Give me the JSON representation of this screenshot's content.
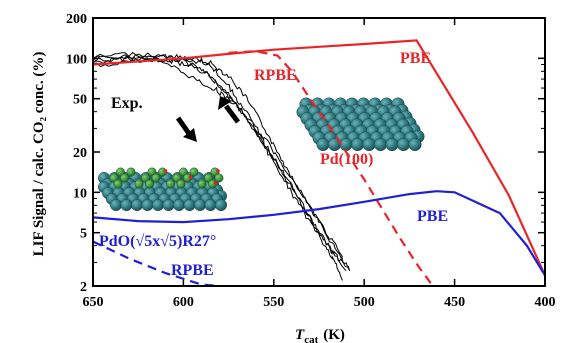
{
  "chart_data": {
    "type": "line",
    "xlabel": "T",
    "xlabel_sub": "cat",
    "xlabel_unit": "(K)",
    "ylabel": "LIF Signal / calc. CO₂ conc. (%)",
    "xlim": [
      650,
      400
    ],
    "ylim": [
      2,
      200
    ],
    "y_scale": "log",
    "x_ticks": [
      "650",
      "600",
      "550",
      "500",
      "450",
      "400"
    ],
    "y_ticks": [
      "200",
      "100",
      "50",
      "20",
      "10",
      "5",
      "2"
    ],
    "grid": false,
    "colors": {
      "red": "#e8262a",
      "blue": "#1f1fd6",
      "black": "#000000"
    },
    "series": [
      {
        "name": "PBE",
        "color": "red",
        "dash": false,
        "x": [
          650,
          600,
          575,
          550,
          525,
          500,
          471,
          440,
          420,
          400
        ],
        "y": [
          90,
          100,
          108,
          116,
          122,
          128,
          136,
          28,
          9.5,
          2.4
        ]
      },
      {
        "name": "RPBE",
        "color": "red",
        "dash": true,
        "x": [
          575,
          560,
          548,
          540,
          530,
          520,
          510,
          500,
          490,
          480,
          470,
          462
        ],
        "y": [
          110,
          113,
          105,
          80,
          50,
          32,
          20,
          12.5,
          7.5,
          4.5,
          2.8,
          2
        ]
      },
      {
        "name": "PBE",
        "color": "blue",
        "dash": false,
        "x": [
          650,
          625,
          600,
          575,
          550,
          525,
          500,
          475,
          460,
          450,
          425,
          410,
          400
        ],
        "y": [
          6.5,
          6.1,
          6.0,
          6.3,
          6.8,
          7.5,
          8.5,
          9.7,
          10.2,
          10.0,
          7.0,
          4.0,
          2.4
        ]
      },
      {
        "name": "RPBE",
        "color": "blue",
        "dash": true,
        "x": [
          650,
          630,
          610,
          590,
          580
        ],
        "y": [
          4.3,
          3.2,
          2.5,
          2.05,
          2
        ]
      }
    ],
    "experiment_traces": [
      {
        "x": [
          650,
          630,
          610,
          595,
          585,
          575,
          565,
          555,
          545,
          535,
          525,
          515,
          508
        ],
        "y": [
          93,
          100,
          98,
          95,
          92,
          74,
          50,
          30,
          17,
          10,
          6,
          3.6,
          2.6
        ]
      },
      {
        "x": [
          650,
          630,
          612,
          600,
          590,
          580,
          570,
          560,
          550,
          540,
          530,
          520,
          510
        ],
        "y": [
          100,
          104,
          105,
          96,
          82,
          62,
          44,
          28,
          17.5,
          10.8,
          6.5,
          4,
          2.6
        ]
      },
      {
        "x": [
          650,
          635,
          620,
          605,
          592,
          582,
          572,
          562,
          552,
          542,
          532,
          522,
          512
        ],
        "y": [
          97,
          99,
          100,
          85,
          68,
          58,
          46,
          33,
          22,
          14,
          8.5,
          5.3,
          3.3
        ]
      },
      {
        "x": [
          650,
          630,
          610,
          598,
          588,
          578,
          568,
          558,
          548,
          538,
          530,
          522,
          515,
          508
        ],
        "y": [
          102,
          108,
          104,
          100,
          96,
          70,
          45,
          27,
          16.5,
          10,
          6.4,
          4.3,
          3.3,
          2.6
        ]
      },
      {
        "x": [
          650,
          628,
          608,
          596,
          586,
          576,
          566,
          556,
          546,
          536,
          526,
          518,
          512
        ],
        "y": [
          88,
          95,
          96,
          88,
          75,
          56,
          38,
          23,
          13.5,
          8,
          5,
          3.3,
          2.2
        ]
      }
    ],
    "annotations": [
      {
        "text": "PBE",
        "color": "red"
      },
      {
        "text": "RPBE",
        "color": "red"
      },
      {
        "text": "Pd(100)",
        "color": "red"
      },
      {
        "text": "Exp.",
        "color": "black"
      },
      {
        "text": "PBE",
        "color": "blue"
      },
      {
        "text": "PdO(√5x√5)R27°",
        "color": "blue"
      },
      {
        "text": "RPBE",
        "color": "blue"
      }
    ]
  }
}
